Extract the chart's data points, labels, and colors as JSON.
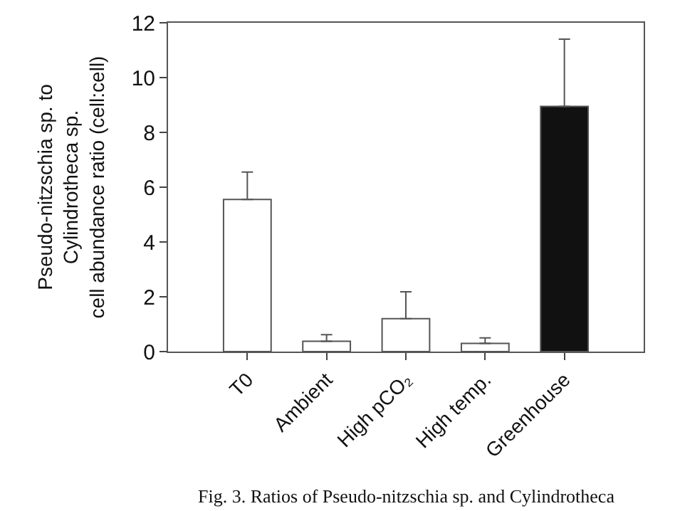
{
  "chart_data": {
    "type": "bar",
    "ylabel": "Pseudo-nitzschia sp. to\nCylindrotheca sp.\ncell abundance ratio (cell:cell)",
    "categories": [
      "T0",
      "Ambient",
      "High pCO₂",
      "High temp.",
      "Greenhouse"
    ],
    "values": [
      5.55,
      0.38,
      1.2,
      0.3,
      8.95
    ],
    "errors": [
      [
        5.55,
        6.55
      ],
      [
        0.38,
        0.62
      ],
      [
        1.2,
        2.18
      ],
      [
        0.3,
        0.5
      ],
      [
        8.95,
        11.4
      ]
    ],
    "colors": [
      "#ffffff",
      "#ffffff",
      "#ffffff",
      "#ffffff",
      "#111111"
    ],
    "ylim": [
      0,
      12
    ],
    "yticks": [
      0,
      2,
      4,
      6,
      8,
      10,
      12
    ],
    "annotations": [
      "Fig. 3. Ratios of Pseudo-nitzschia sp. and Cylindrotheca"
    ]
  }
}
